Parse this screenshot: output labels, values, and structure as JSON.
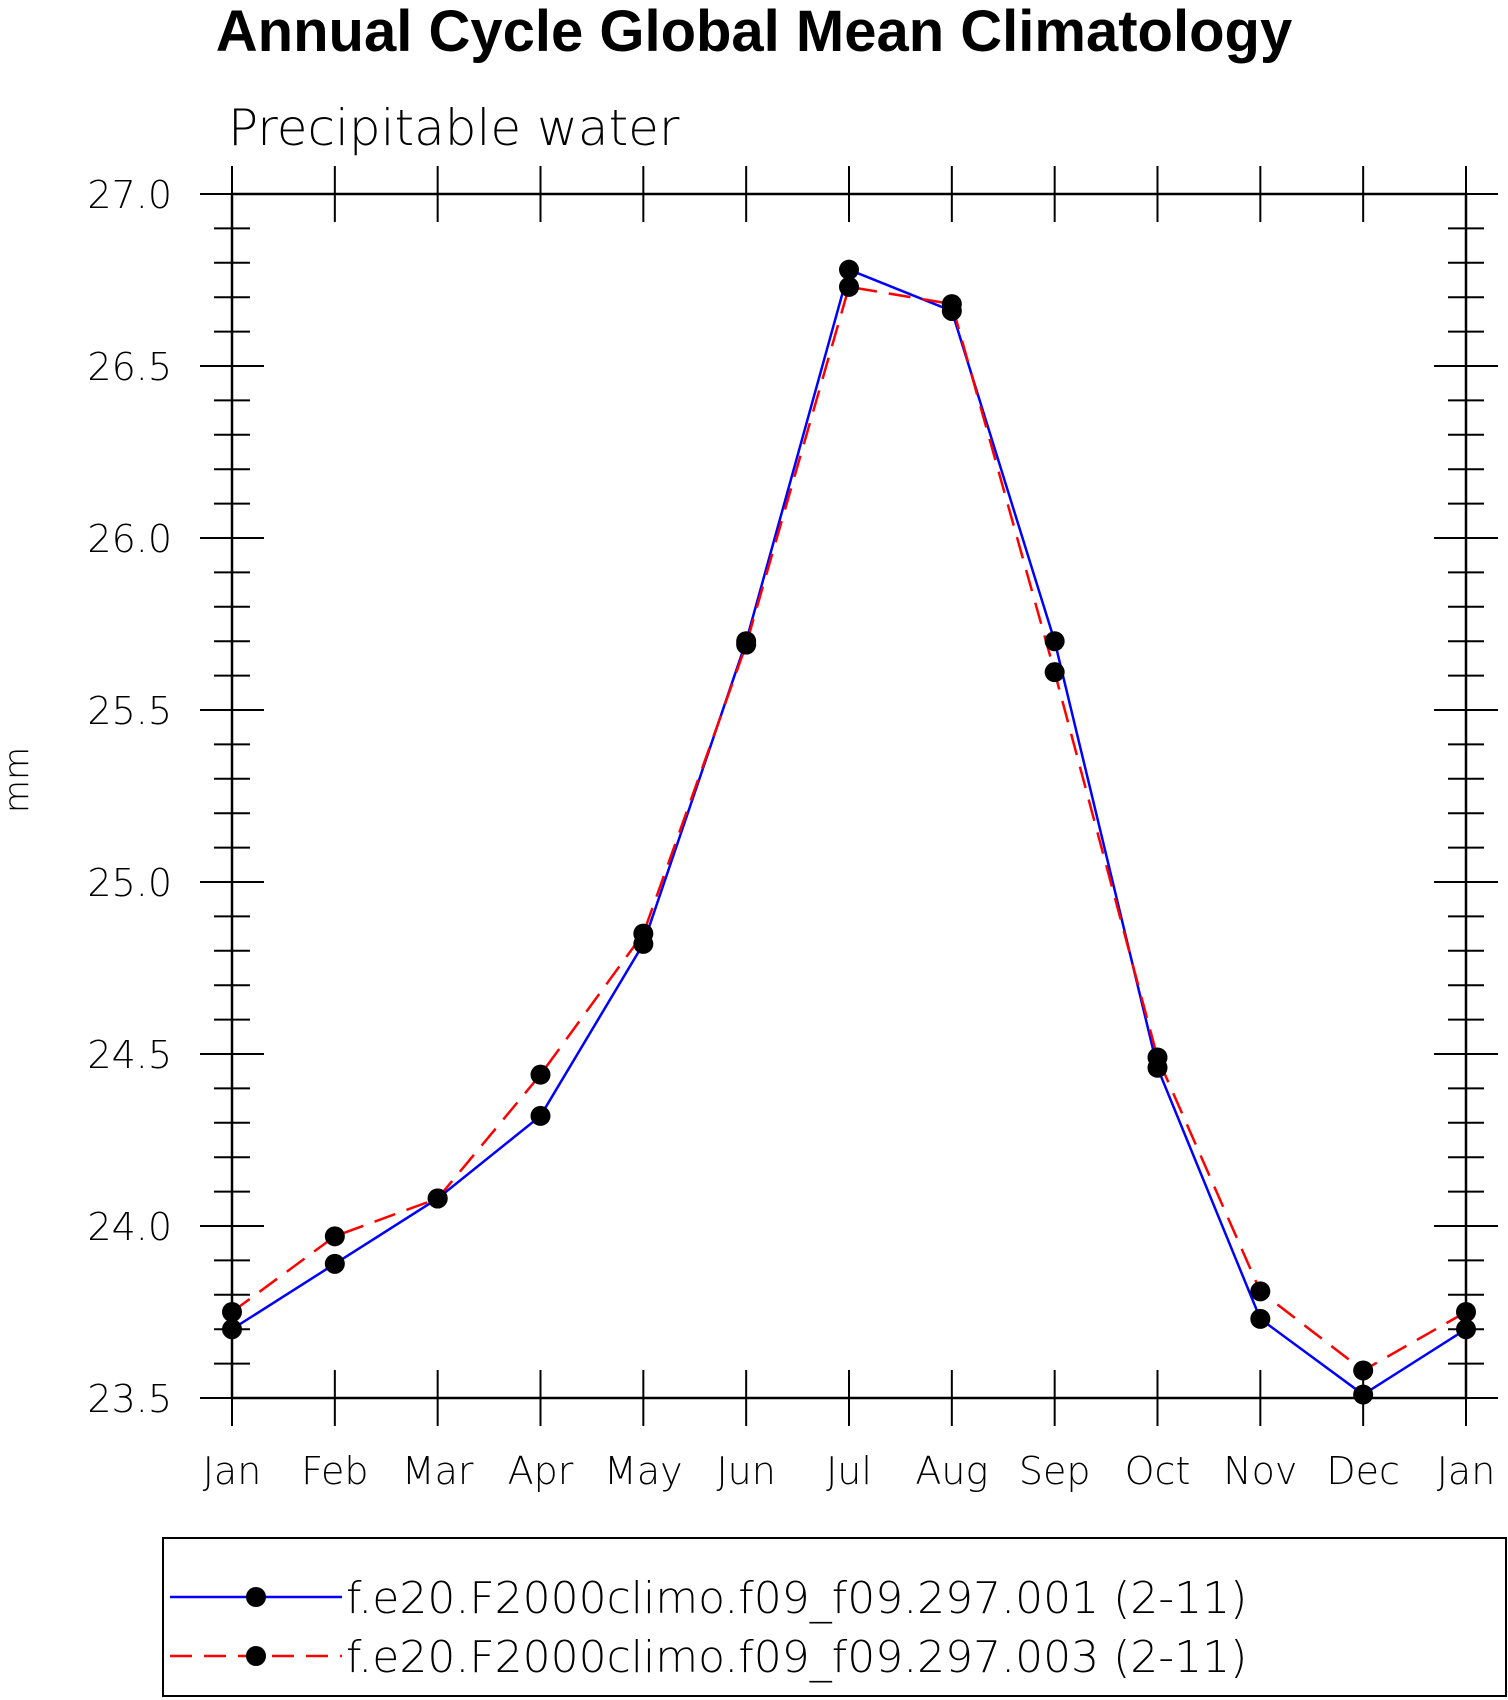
{
  "chart_data": {
    "type": "line",
    "title": "Annual Cycle Global Mean Climatology",
    "subtitle": "Precipitable water",
    "xlabel": "",
    "ylabel": "mm",
    "categories": [
      "Jan",
      "Feb",
      "Mar",
      "Apr",
      "May",
      "Jun",
      "Jul",
      "Aug",
      "Sep",
      "Oct",
      "Nov",
      "Dec",
      "Jan"
    ],
    "ylim": [
      23.5,
      27.0
    ],
    "yticks": [
      "23.5",
      "24.0",
      "24.5",
      "25.0",
      "25.5",
      "26.0",
      "26.5",
      "27.0"
    ],
    "series": [
      {
        "name": "f.e20.F2000climo.f09_f09.297.001 (2-11)",
        "color": "#0000ff",
        "dash": "solid",
        "marker": "dot",
        "values": [
          23.7,
          23.89,
          24.08,
          24.32,
          24.82,
          25.7,
          26.78,
          26.66,
          25.7,
          24.46,
          23.73,
          23.51,
          23.7
        ]
      },
      {
        "name": "f.e20.F2000climo.f09_f09.297.003 (2-11)",
        "color": "#ff0000",
        "dash": "dashed",
        "marker": "dot",
        "values": [
          23.75,
          23.97,
          24.08,
          24.44,
          24.85,
          25.69,
          26.73,
          26.68,
          25.61,
          24.49,
          23.81,
          23.58,
          23.75
        ]
      }
    ],
    "legend_position": "bottom",
    "grid": false
  }
}
